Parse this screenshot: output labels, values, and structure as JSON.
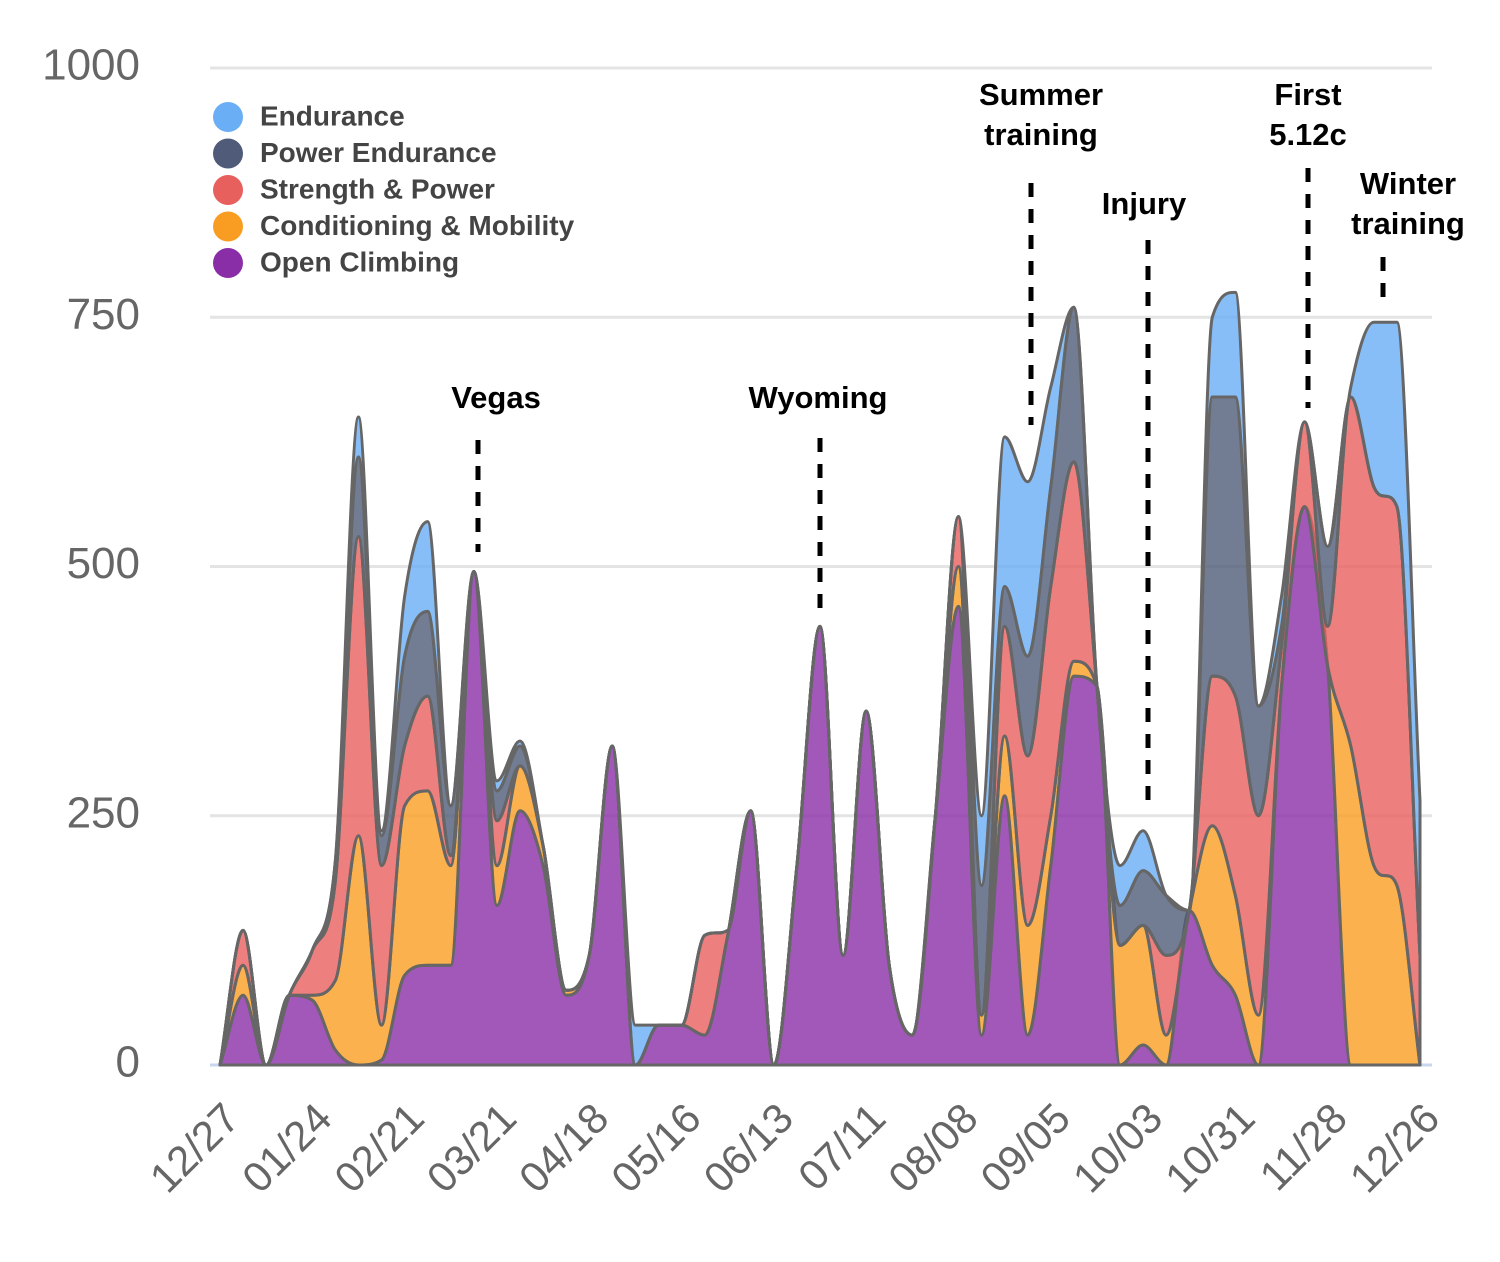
{
  "chart_data": {
    "type": "stacked_area",
    "categories": [
      "12/27",
      null,
      null,
      null,
      "01/24",
      null,
      null,
      null,
      "02/21",
      null,
      null,
      null,
      "03/21",
      null,
      null,
      null,
      "04/18",
      null,
      null,
      null,
      "05/16",
      null,
      null,
      null,
      "06/13",
      null,
      null,
      null,
      "07/11",
      null,
      null,
      null,
      "08/08",
      null,
      null,
      null,
      "09/05",
      null,
      null,
      null,
      "10/03",
      null,
      null,
      null,
      "10/31",
      null,
      null,
      null,
      "11/28",
      null,
      null,
      null,
      "12/26"
    ],
    "series": [
      {
        "name": "Open Climbing",
        "color": "#8a2ea8",
        "values": [
          0,
          70,
          0,
          70,
          65,
          15,
          0,
          5,
          90,
          100,
          100,
          495,
          160,
          255,
          200,
          70,
          110,
          320,
          0,
          40,
          40,
          30,
          130,
          255,
          0,
          200,
          440,
          110,
          355,
          100,
          30,
          250,
          460,
          30,
          270,
          30,
          200,
          390,
          380,
          0,
          20,
          0,
          155,
          100,
          70,
          0,
          380,
          560,
          400,
          0,
          0,
          0,
          0
        ]
      },
      {
        "name": "Conditioning & Mobility",
        "color": "#f99d22",
        "values": [
          0,
          30,
          0,
          0,
          5,
          70,
          230,
          35,
          170,
          175,
          100,
          0,
          40,
          45,
          20,
          5,
          0,
          0,
          0,
          0,
          0,
          0,
          0,
          0,
          0,
          0,
          0,
          0,
          0,
          0,
          0,
          0,
          40,
          20,
          60,
          110,
          50,
          15,
          0,
          120,
          120,
          30,
          0,
          140,
          100,
          50,
          0,
          0,
          0,
          320,
          200,
          180,
          0
        ]
      },
      {
        "name": "Strength & Power",
        "color": "#e8605e",
        "values": [
          0,
          35,
          0,
          0,
          45,
          100,
          300,
          160,
          60,
          95,
          10,
          0,
          45,
          0,
          0,
          0,
          0,
          0,
          0,
          0,
          0,
          100,
          5,
          0,
          0,
          0,
          0,
          0,
          0,
          0,
          0,
          0,
          50,
          0,
          110,
          170,
          230,
          200,
          0,
          0,
          0,
          80,
          0,
          150,
          200,
          200,
          40,
          85,
          40,
          350,
          380,
          380,
          110
        ]
      },
      {
        "name": "Power Endurance",
        "color": "#4f5b78",
        "values": [
          0,
          0,
          0,
          0,
          0,
          20,
          80,
          30,
          90,
          85,
          50,
          0,
          30,
          20,
          0,
          0,
          0,
          0,
          0,
          0,
          0,
          0,
          0,
          0,
          0,
          0,
          0,
          0,
          0,
          0,
          0,
          0,
          0,
          130,
          40,
          100,
          100,
          155,
          0,
          40,
          55,
          60,
          0,
          280,
          300,
          110,
          20,
          0,
          80,
          0,
          0,
          0,
          0
        ]
      },
      {
        "name": "Endurance",
        "color": "#6aaef5",
        "values": [
          0,
          0,
          0,
          0,
          0,
          0,
          40,
          5,
          60,
          90,
          0,
          0,
          10,
          5,
          0,
          0,
          0,
          0,
          40,
          0,
          0,
          0,
          0,
          0,
          0,
          0,
          0,
          0,
          0,
          0,
          0,
          0,
          0,
          70,
          150,
          175,
          100,
          0,
          0,
          40,
          40,
          0,
          0,
          80,
          105,
          0,
          30,
          0,
          0,
          10,
          165,
          185,
          155
        ]
      }
    ],
    "ylim": [
      0,
      1000
    ],
    "yticks": [
      0,
      250,
      500,
      750,
      1000
    ],
    "grid": true,
    "legend": "upper left",
    "annotations": [
      [
        "Vegas"
      ],
      [
        "Wyoming"
      ],
      [
        "Summer",
        "training"
      ],
      [
        "Injury"
      ],
      [
        "First",
        "5.12c"
      ],
      [
        "Winter",
        "training"
      ]
    ]
  }
}
